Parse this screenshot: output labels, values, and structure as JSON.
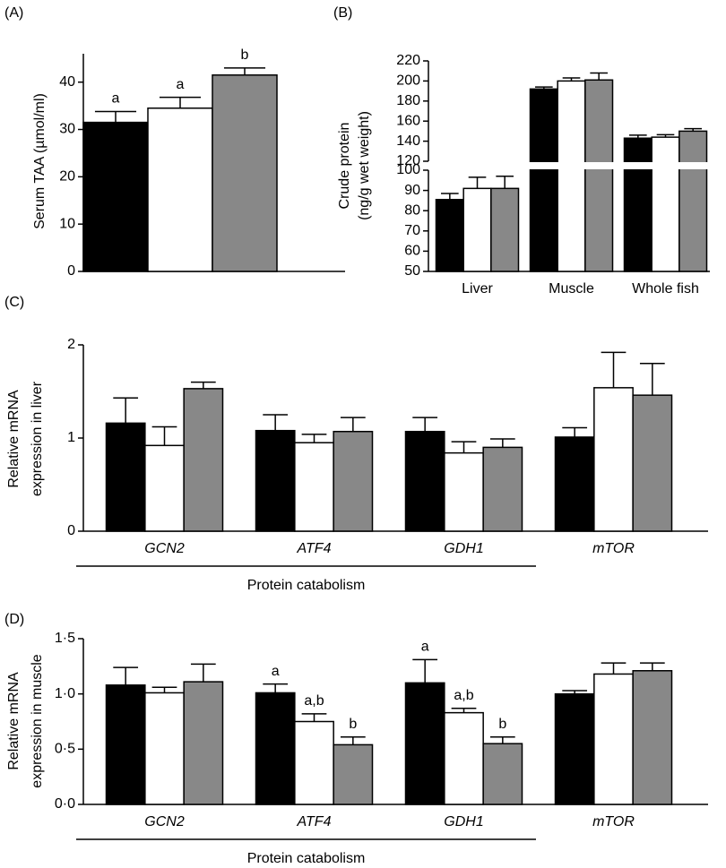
{
  "chart_data": [
    {
      "type": "bar",
      "label": "(A)",
      "ylabel": [
        "Serum TAA (µmol/ml)"
      ],
      "categories": [
        null
      ],
      "ylim": [
        0,
        46
      ],
      "yticks": [
        0,
        10,
        20,
        30,
        40
      ],
      "series": [
        {
          "color": "#000000",
          "values": [
            31.5
          ],
          "errors": [
            2.3
          ],
          "letters": [
            "a"
          ]
        },
        {
          "color": "#ffffff",
          "values": [
            34.5
          ],
          "errors": [
            2.3
          ],
          "letters": [
            "a"
          ]
        },
        {
          "color": "#888888",
          "values": [
            41.5
          ],
          "errors": [
            1.5
          ],
          "letters": [
            "b"
          ]
        }
      ]
    },
    {
      "type": "bar",
      "label": "(B)",
      "ylabel": [
        "Crude protein",
        "(ng/g wet weight)"
      ],
      "categories": [
        "Liver",
        "Muscle",
        "Whole fish"
      ],
      "ylim": [
        50,
        220
      ],
      "ybreak": [
        100,
        120
      ],
      "yticks": [
        50,
        60,
        70,
        80,
        90,
        100,
        120,
        140,
        160,
        180,
        200,
        220
      ],
      "series": [
        {
          "color": "#000000",
          "values": [
            85.5,
            192,
            143
          ],
          "errors": [
            3,
            2,
            3
          ]
        },
        {
          "color": "#ffffff",
          "values": [
            91,
            200,
            144
          ],
          "errors": [
            5.5,
            3,
            2.5
          ]
        },
        {
          "color": "#888888",
          "values": [
            91,
            201,
            150
          ],
          "errors": [
            6,
            7,
            2.5
          ]
        }
      ]
    },
    {
      "type": "bar",
      "label": "(C)",
      "ylabel": [
        "Relative mRNA",
        "expression in liver"
      ],
      "categories": [
        "GCN2",
        "ATF4",
        "GDH1",
        "mTOR"
      ],
      "category_style": "italic",
      "groups": [
        {
          "label": "Protein catabolism",
          "categories": [
            "GCN2",
            "ATF4",
            "GDH1"
          ]
        }
      ],
      "ylim": [
        0,
        2
      ],
      "yticks": [
        0,
        1,
        2
      ],
      "series": [
        {
          "color": "#000000",
          "values": [
            1.16,
            1.08,
            1.07,
            1.01
          ],
          "errors": [
            0.27,
            0.17,
            0.15,
            0.1
          ]
        },
        {
          "color": "#ffffff",
          "values": [
            0.92,
            0.95,
            0.84,
            1.54
          ],
          "errors": [
            0.2,
            0.09,
            0.12,
            0.38
          ]
        },
        {
          "color": "#888888",
          "values": [
            1.53,
            1.07,
            0.9,
            1.46
          ],
          "errors": [
            0.07,
            0.15,
            0.09,
            0.34
          ]
        }
      ]
    },
    {
      "type": "bar",
      "label": "(D)",
      "ylabel": [
        "Relative mRNA",
        "expression in muscle"
      ],
      "categories": [
        "GCN2",
        "ATF4",
        "GDH1",
        "mTOR"
      ],
      "category_style": "italic",
      "groups": [
        {
          "label": "Protein catabolism",
          "categories": [
            "GCN2",
            "ATF4",
            "GDH1"
          ]
        }
      ],
      "ylim": [
        0,
        1.5
      ],
      "yticks": [
        {
          "value": 0,
          "label": "0·0"
        },
        {
          "value": 0.5,
          "label": "0·5"
        },
        {
          "value": 1,
          "label": "1·0"
        },
        {
          "value": 1.5,
          "label": "1·5"
        }
      ],
      "series": [
        {
          "color": "#000000",
          "values": [
            1.08,
            1.01,
            1.1,
            1.0
          ],
          "errors": [
            0.16,
            0.08,
            0.21,
            0.03
          ],
          "letters": [
            null,
            "a",
            "a",
            null
          ]
        },
        {
          "color": "#ffffff",
          "values": [
            1.01,
            0.75,
            0.83,
            1.18
          ],
          "errors": [
            0.05,
            0.07,
            0.04,
            0.1
          ],
          "letters": [
            null,
            "a,b",
            "a,b",
            null
          ]
        },
        {
          "color": "#888888",
          "values": [
            1.11,
            0.54,
            0.55,
            1.21
          ],
          "errors": [
            0.16,
            0.07,
            0.06,
            0.07
          ],
          "letters": [
            null,
            "b",
            "b",
            null
          ]
        }
      ]
    }
  ]
}
